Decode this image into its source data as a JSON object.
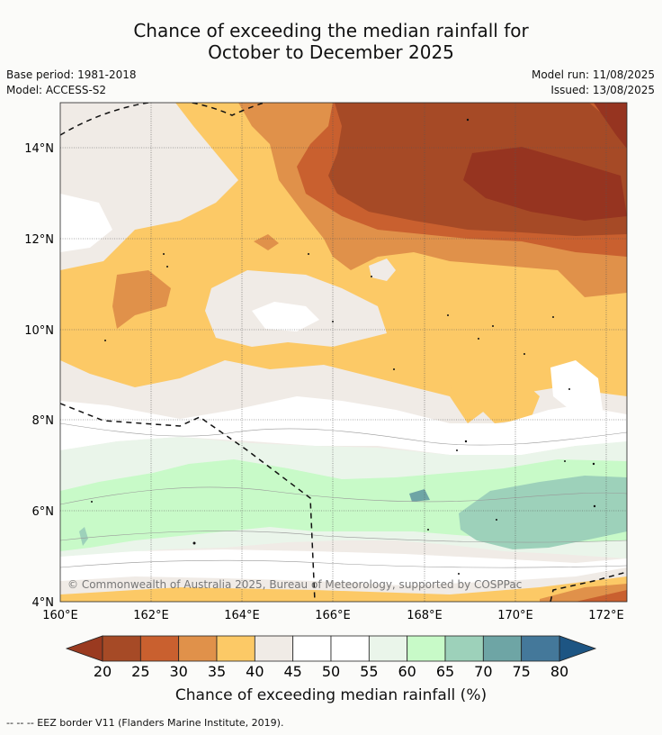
{
  "title": {
    "line1": "Chance of exceeding the median rainfall for",
    "line2": "October to December 2025"
  },
  "meta": {
    "base_period": "Base period: 1981-2018",
    "model": "Model: ACCESS-S2",
    "model_run": "Model run: 11/08/2025",
    "issued": "Issued: 13/08/2025"
  },
  "map": {
    "lat_ticks": [
      "14°N",
      "12°N",
      "10°N",
      "8°N",
      "6°N",
      "4°N"
    ],
    "lon_ticks": [
      "160°E",
      "162°E",
      "164°E",
      "166°E",
      "168°E",
      "170°E",
      "172°E"
    ],
    "copyright": "© Commonwealth of Australia 2025, Bureau of Meteorology, supported by COSPPac"
  },
  "colorbar": {
    "title": "Chance of exceeding median rainfall (%)",
    "labels": [
      "20",
      "25",
      "30",
      "35",
      "40",
      "45",
      "50",
      "55",
      "60",
      "65",
      "70",
      "75",
      "80"
    ],
    "colors": [
      "#a64a26",
      "#c9602f",
      "#e0914a",
      "#fcc966",
      "#f0ebe6",
      "#ffffff",
      "#ffffff",
      "#eaf5ea",
      "#c8fac8",
      "#9dd1ba",
      "#6ea5a5",
      "#44789a"
    ],
    "under_color": "#9a3a20",
    "over_color": "#1d5583"
  },
  "footnote": "-- -- -- EEZ border V11 (Flanders Marine Institute, 2019)."
}
